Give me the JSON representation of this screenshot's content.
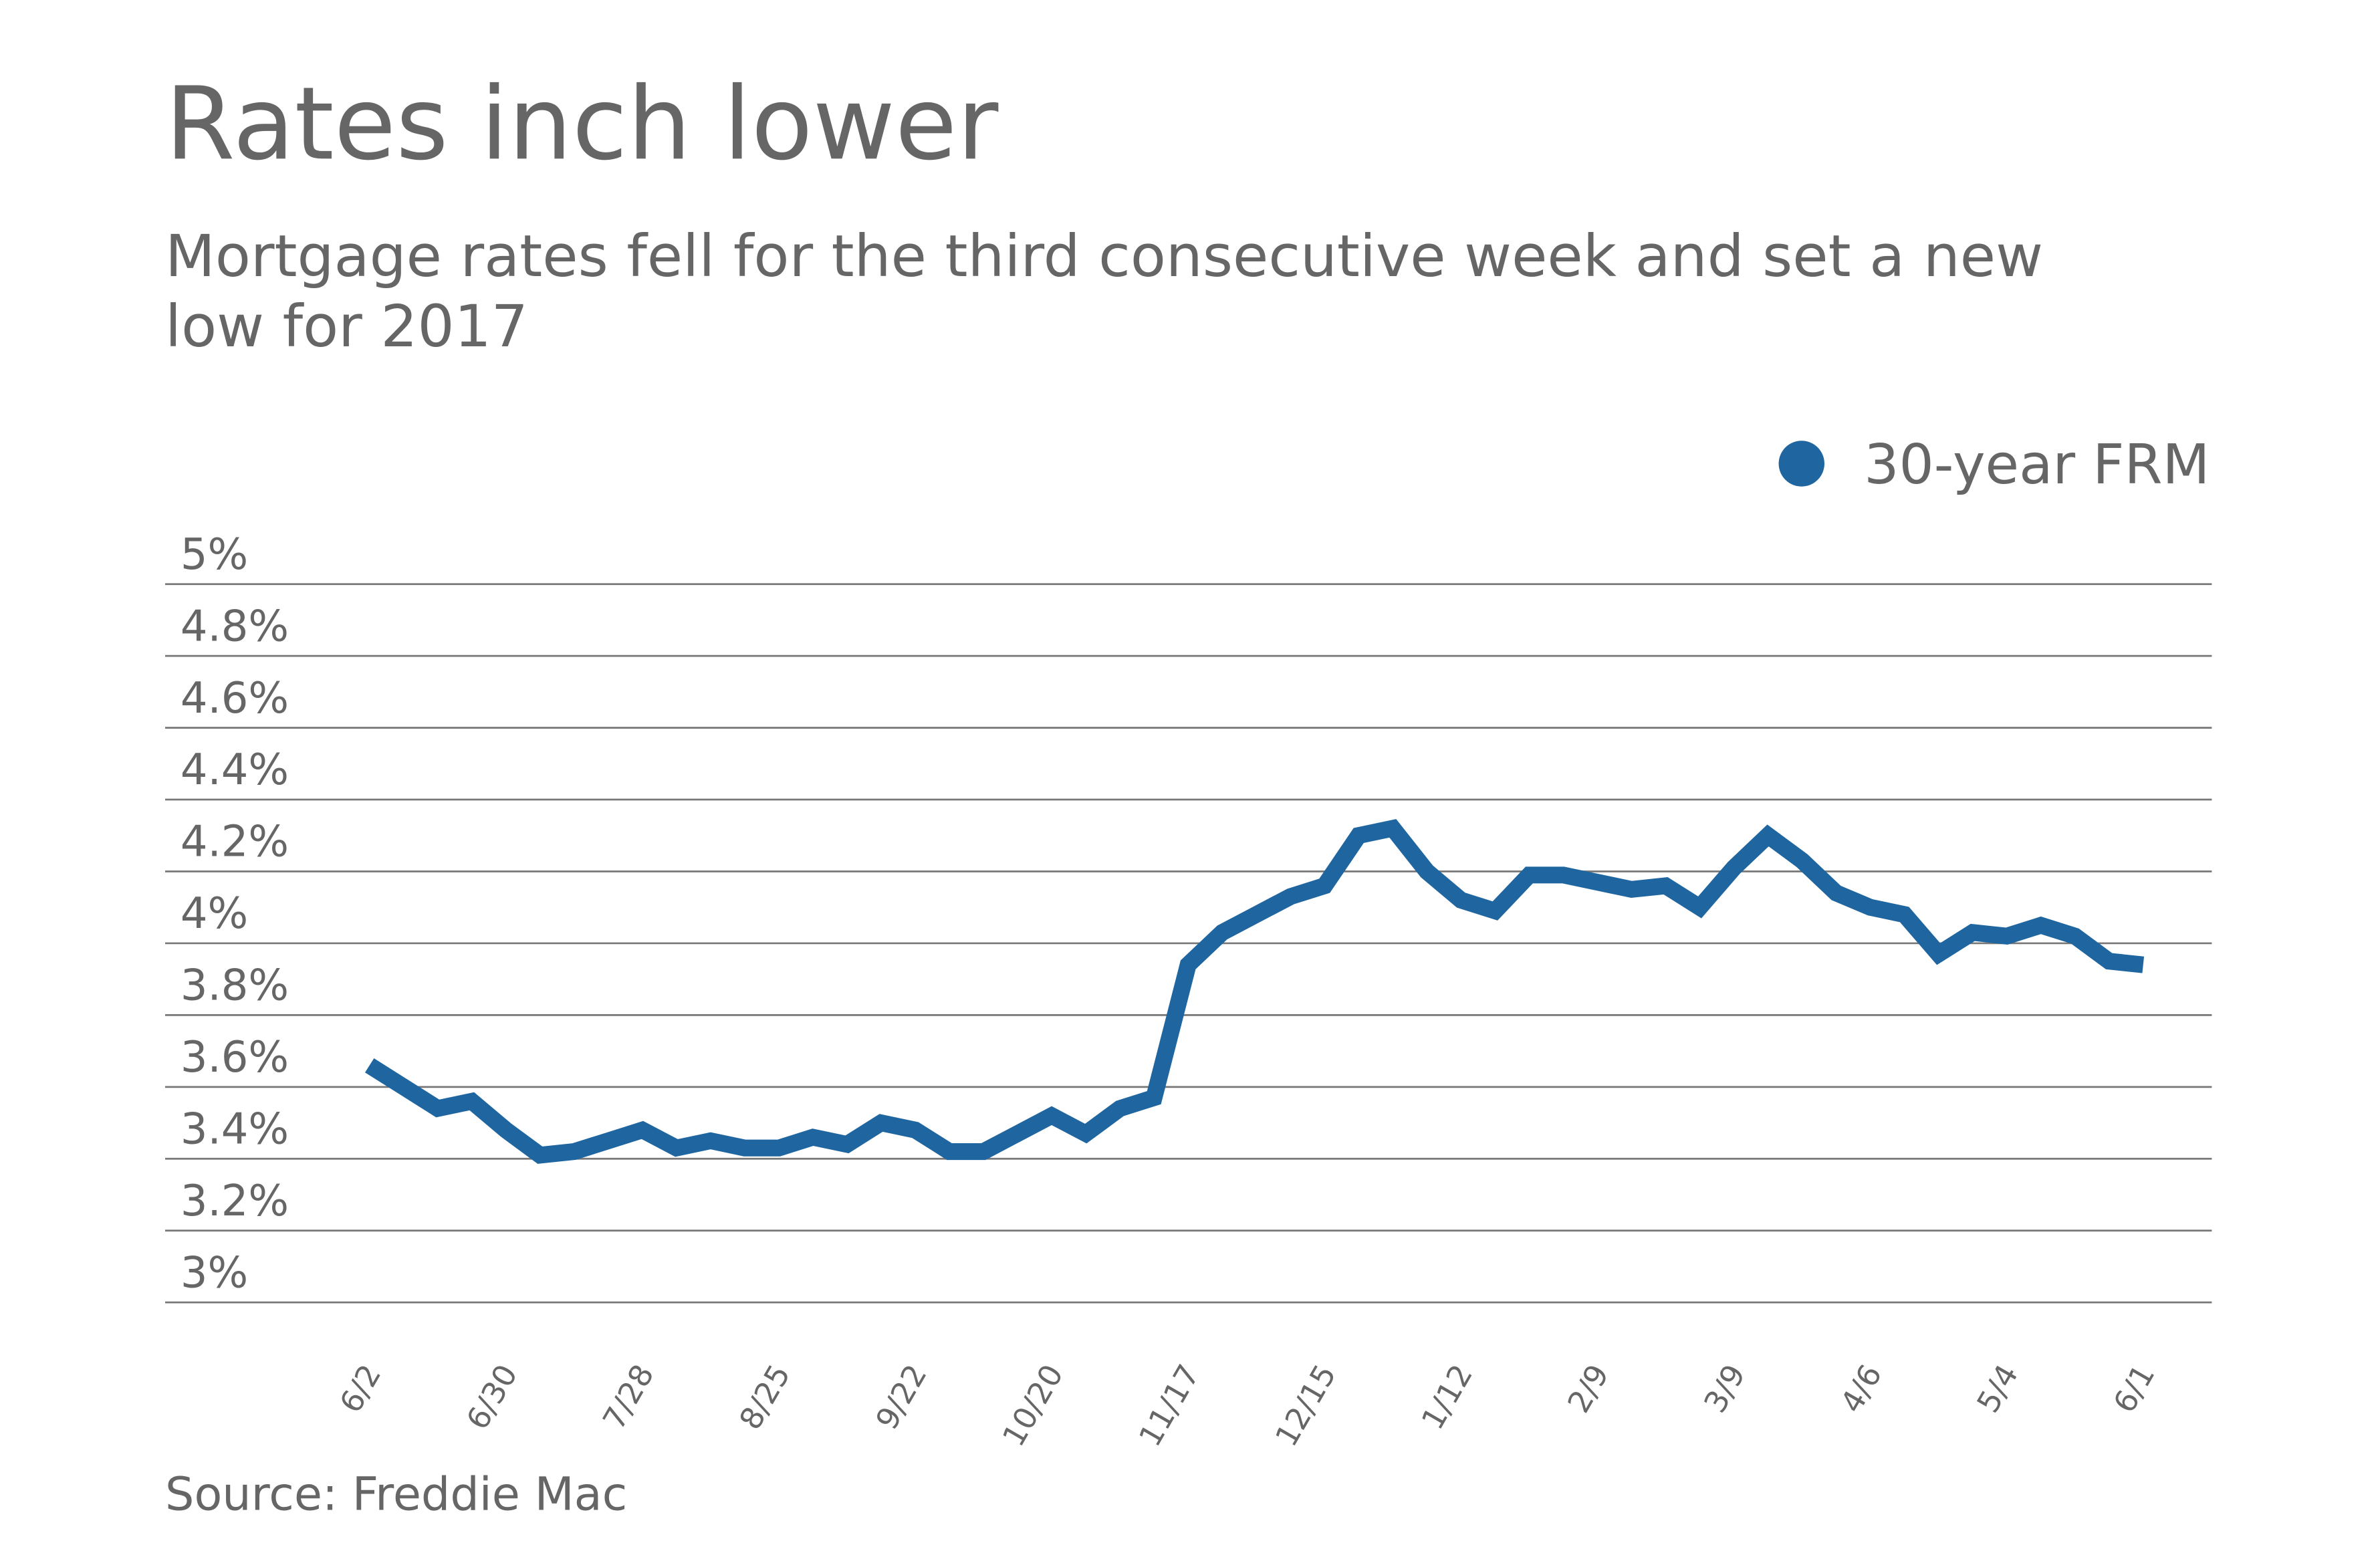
{
  "chart_data": {
    "type": "line",
    "title": "Rates inch lower",
    "subtitle": "Mortgage rates fell for the third consecutive week and set a new low for 2017",
    "source": "Source: Freddie Mac",
    "categories": [
      "6/2",
      null,
      null,
      null,
      "6/30",
      null,
      null,
      null,
      "7/28",
      null,
      null,
      null,
      "8/25",
      null,
      null,
      null,
      "9/22",
      null,
      null,
      null,
      "10/20",
      null,
      null,
      null,
      "11/17",
      null,
      null,
      null,
      "12/15",
      null,
      null,
      null,
      "1/12",
      null,
      null,
      null,
      "2/9",
      null,
      null,
      null,
      "3/9",
      null,
      null,
      null,
      "4/6",
      null,
      null,
      null,
      "5/4",
      null,
      null,
      null,
      "6/1"
    ],
    "series": [
      {
        "name": "30-year FRM",
        "color": "#1f66a0",
        "values": [
          3.66,
          3.6,
          3.54,
          3.56,
          3.48,
          3.41,
          3.42,
          3.45,
          3.48,
          3.43,
          3.45,
          3.43,
          3.43,
          3.46,
          3.44,
          3.5,
          3.48,
          3.42,
          3.42,
          3.47,
          3.52,
          3.47,
          3.54,
          3.57,
          3.94,
          4.03,
          4.08,
          4.13,
          4.16,
          4.3,
          4.32,
          4.2,
          4.12,
          4.09,
          4.19,
          4.19,
          4.17,
          4.15,
          4.16,
          4.1,
          4.21,
          4.3,
          4.23,
          4.14,
          4.1,
          4.08,
          3.97,
          4.03,
          4.02,
          4.05,
          4.02,
          3.95,
          3.94
        ]
      }
    ],
    "ylim": [
      3,
      5
    ],
    "yticks": [
      {
        "value": 3,
        "label": "3%"
      },
      {
        "value": 3.2,
        "label": "3.2%"
      },
      {
        "value": 3.4,
        "label": "3.4%"
      },
      {
        "value": 3.6,
        "label": "3.6%"
      },
      {
        "value": 3.8,
        "label": "3.8%"
      },
      {
        "value": 4,
        "label": "4%"
      },
      {
        "value": 4.2,
        "label": "4.2%"
      },
      {
        "value": 4.4,
        "label": "4.4%"
      },
      {
        "value": 4.6,
        "label": "4.6%"
      },
      {
        "value": 4.8,
        "label": "4.8%"
      },
      {
        "value": 5,
        "label": "5%"
      }
    ],
    "grid": true,
    "legend": "top-right"
  }
}
